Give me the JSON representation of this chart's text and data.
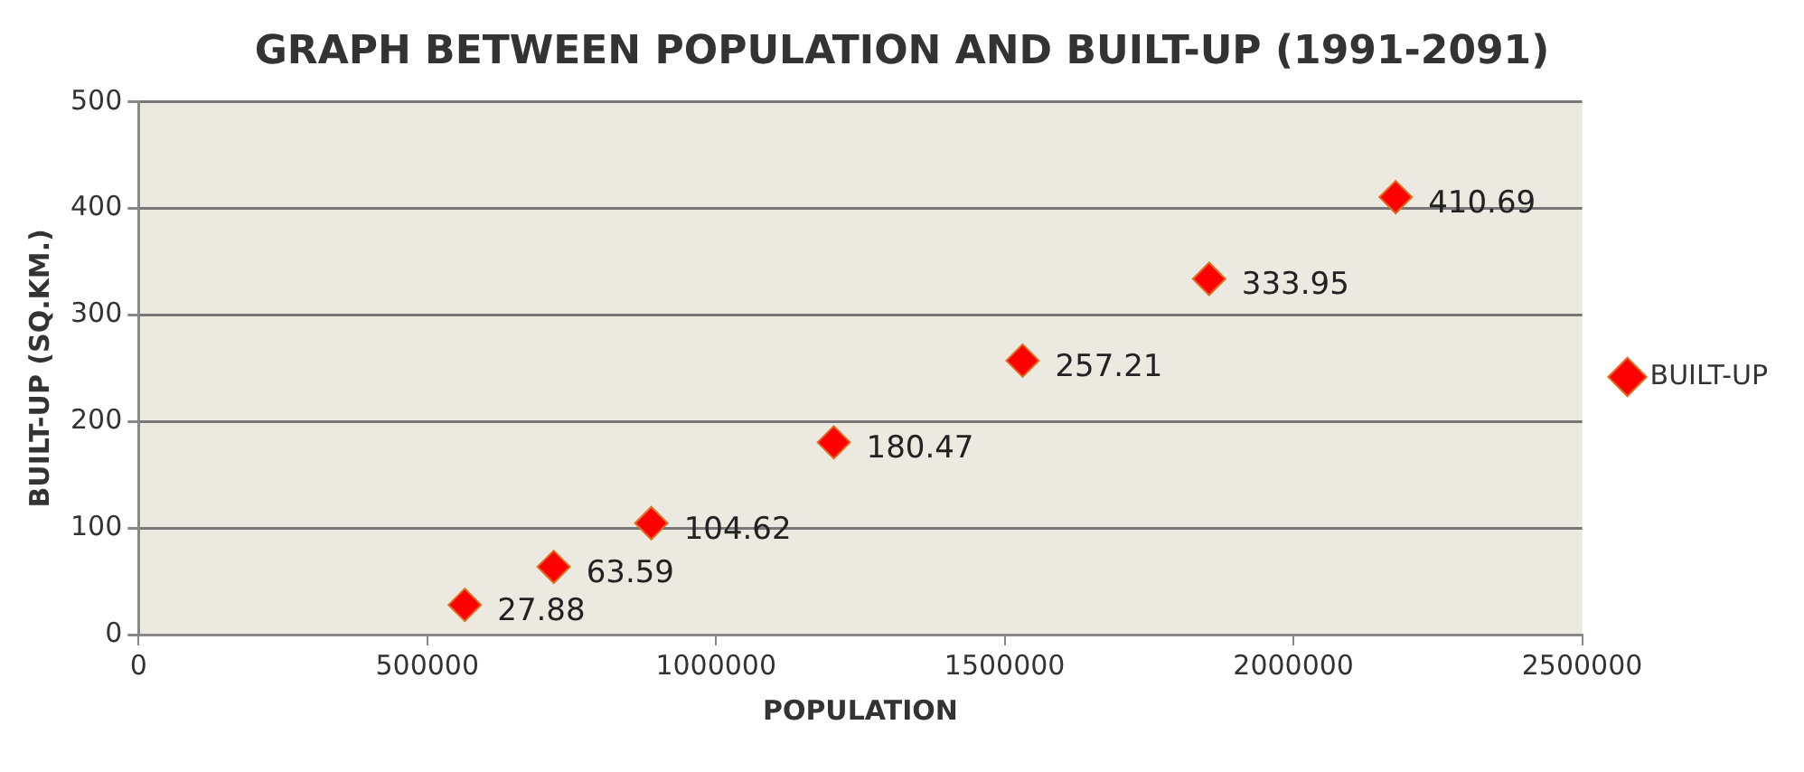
{
  "chart_data": {
    "type": "scatter",
    "title": "GRAPH BETWEEN POPULATION AND BUILT-UP (1991-2091)",
    "xlabel": "POPULATION",
    "ylabel": "BUILT-UP (SQ.KM.)",
    "x": [
      565000,
      719000,
      888000,
      1204000,
      1531000,
      1854000,
      2177000
    ],
    "series": [
      {
        "name": "BUILT-UP",
        "color": "#ff0000",
        "values": [
          27.88,
          63.59,
          104.62,
          180.47,
          257.21,
          333.95,
          410.69
        ]
      }
    ],
    "xlim": [
      0,
      2500000
    ],
    "xticks": [
      0,
      500000,
      1000000,
      1500000,
      2000000,
      2500000
    ],
    "ylim": [
      0,
      500
    ],
    "yticks": [
      0,
      100,
      200,
      300,
      400,
      500
    ],
    "grid": "y",
    "legend": "right",
    "marker": "diamond",
    "data_labels": true
  }
}
